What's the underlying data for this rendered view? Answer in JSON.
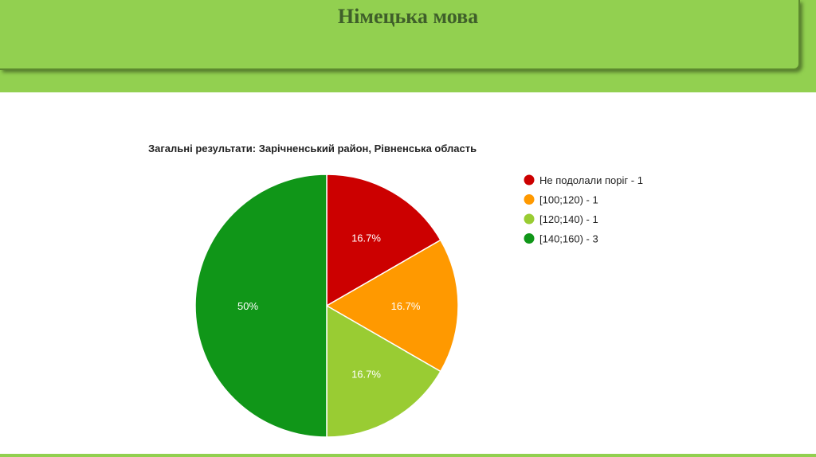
{
  "header": {
    "title": "Німецька мова"
  },
  "colors": {
    "band": "#92d050"
  },
  "chart_data": {
    "type": "pie",
    "title": "Загальні результати: Зарічненський район, Рівненська область",
    "legend_position": "right",
    "slices": [
      {
        "label": "Не подолали поріг - 1",
        "value": 1,
        "percent_label": "16.7%",
        "color": "#cc0000"
      },
      {
        "label": "[100;120) - 1",
        "value": 1,
        "percent_label": "16.7%",
        "color": "#ff9900"
      },
      {
        "label": "[120;140) - 1",
        "value": 1,
        "percent_label": "16.7%",
        "color": "#99cc33"
      },
      {
        "label": "[140;160) - 3",
        "value": 3,
        "percent_label": "50%",
        "color": "#109618"
      }
    ]
  }
}
